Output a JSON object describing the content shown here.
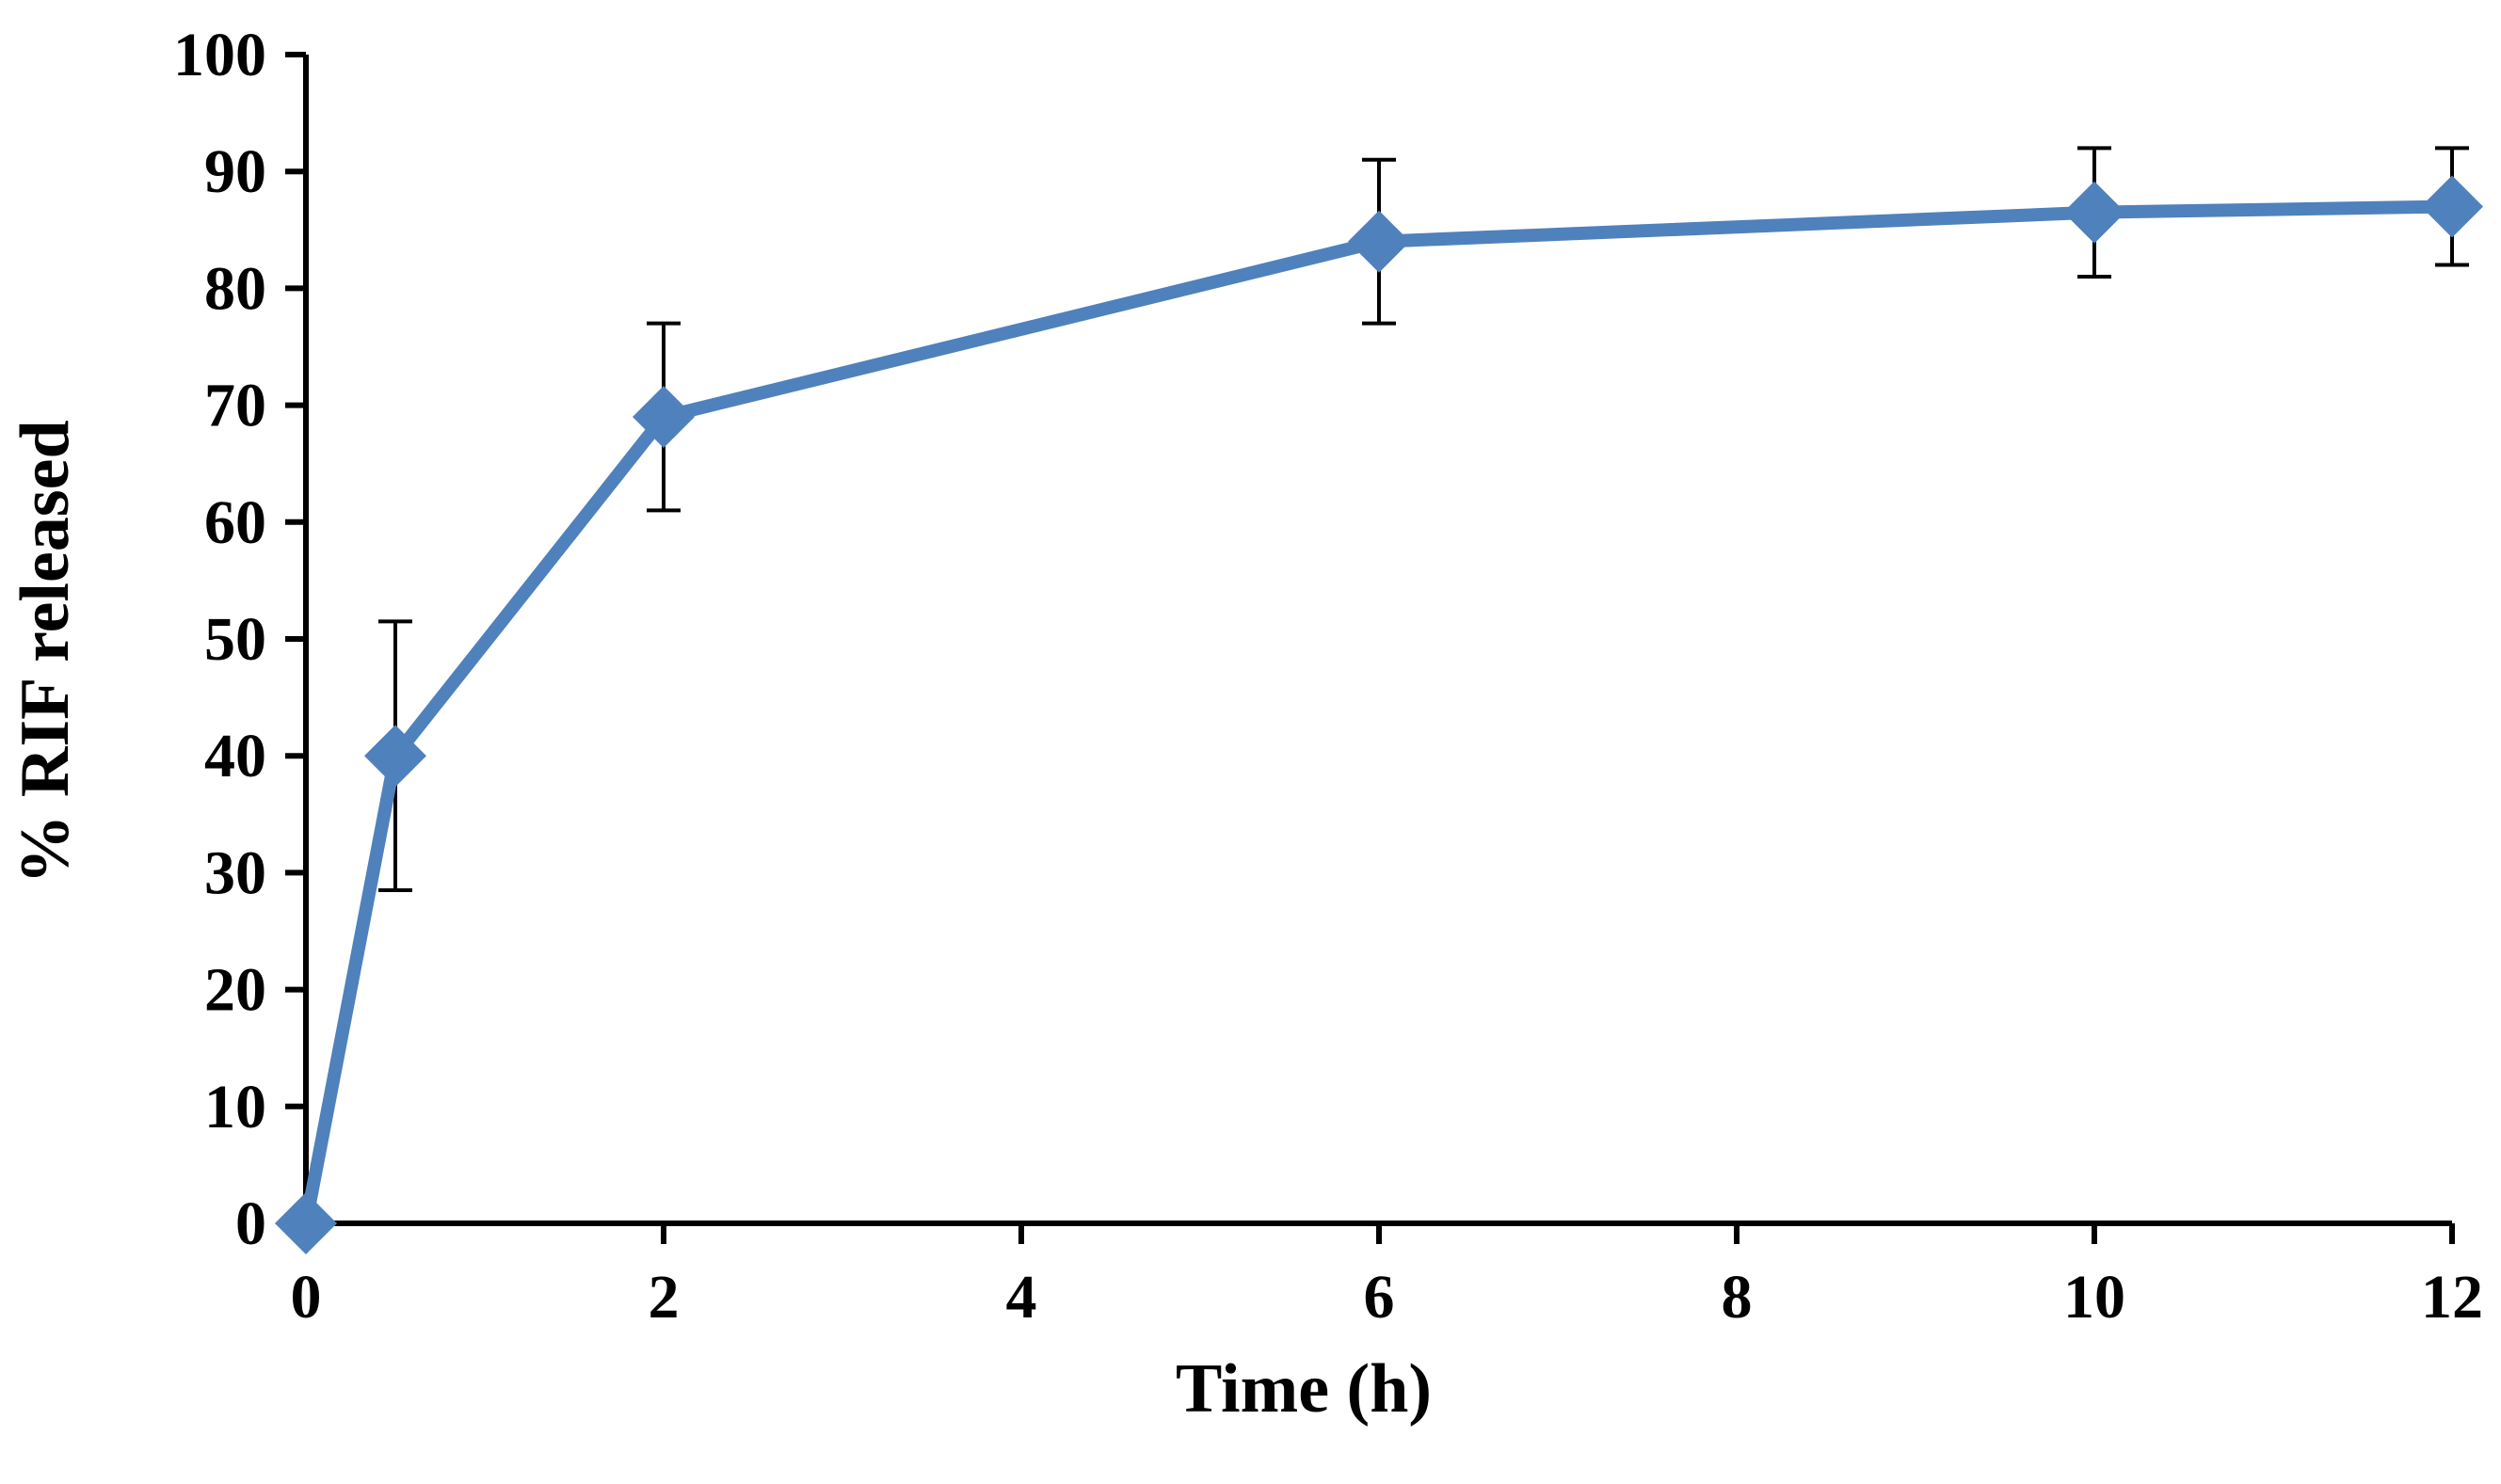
{
  "chart_data": {
    "type": "line",
    "title": "",
    "xlabel": "Time (h)",
    "ylabel": "% RIF released",
    "xlim": [
      0,
      12
    ],
    "ylim": [
      0,
      100
    ],
    "xticks": [
      0,
      2,
      4,
      6,
      8,
      10,
      12
    ],
    "yticks": [
      0,
      10,
      20,
      30,
      40,
      50,
      60,
      70,
      80,
      90,
      100
    ],
    "grid": false,
    "legend": "none",
    "series": [
      {
        "name": "RIF release",
        "color": "#4F81BD",
        "marker": "diamond",
        "x": [
          0,
          0.5,
          2,
          6,
          10,
          12
        ],
        "values": [
          0,
          40,
          69,
          84,
          86.5,
          87
        ],
        "error": [
          0,
          11.5,
          8,
          7,
          5.5,
          5
        ]
      }
    ]
  }
}
